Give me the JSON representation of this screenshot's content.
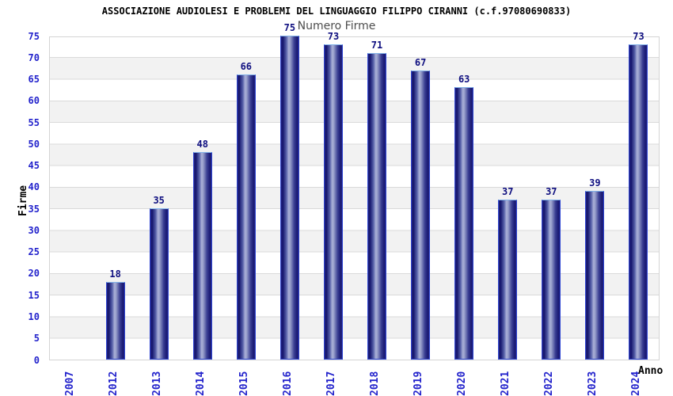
{
  "chart_data": {
    "type": "bar",
    "title": "ASSOCIAZIONE AUDIOLESI E PROBLEMI DEL LINGUAGGIO FILIPPO CIRANNI (c.f.97080690833)",
    "subtitle": "Numero Firme",
    "xlabel": "Anno",
    "ylabel": "Firme",
    "categories": [
      "2007",
      "2012",
      "2013",
      "2014",
      "2015",
      "2016",
      "2017",
      "2018",
      "2019",
      "2020",
      "2021",
      "2022",
      "2023",
      "2024"
    ],
    "values": [
      0,
      18,
      35,
      48,
      66,
      75,
      73,
      71,
      67,
      63,
      37,
      37,
      39,
      73
    ],
    "ylim": [
      0,
      75
    ],
    "ytick_step": 5,
    "grid": true,
    "band_fill": true,
    "legend": "none",
    "colors": {
      "bar_dark": "#1a1a74",
      "bar_light": "#aab0d8",
      "bar_border": "#2f46d2",
      "bar_border_top": "#82b2e8",
      "axis_tick_text": "#2323cc",
      "value_label_text": "#0f0f80",
      "band_fill": "#f2f2f2",
      "gridline": "#dadada",
      "plot_border": "#d4d4d4",
      "title_text": "#000000",
      "subtitle_text": "#4d4d4d"
    }
  }
}
